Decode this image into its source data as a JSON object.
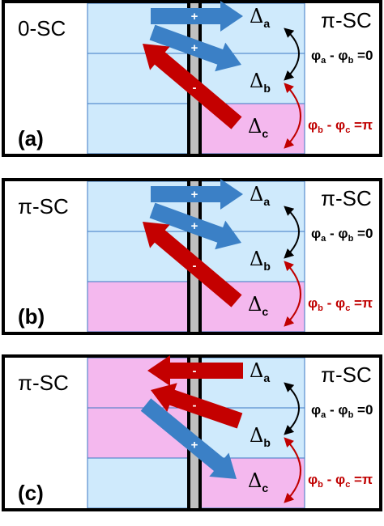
{
  "colors": {
    "band_blue": "#cfeafc",
    "band_pink": "#f4b8ee",
    "band_border": "#3b78c4",
    "barrier": "#c0c0c0",
    "arrow_blue": "#3b80c6",
    "arrow_red": "#c40000",
    "relation_black": "#000000",
    "relation_red": "#c00000",
    "frame": "#000000"
  },
  "panels": [
    {
      "id": "a",
      "panel_label": "(a)",
      "left_sc": "0-SC",
      "right_sc": "π-SC",
      "left_bands": [
        "blue",
        "blue",
        "blue"
      ],
      "right_bands": [
        "blue",
        "blue",
        "pink"
      ],
      "gaps": [
        {
          "main": "Δ",
          "sub": "a"
        },
        {
          "main": "Δ",
          "sub": "b"
        },
        {
          "main": "Δ",
          "sub": "c"
        }
      ],
      "relation_ab": {
        "text": "φ",
        "sub1": "a",
        "mid": " - φ",
        "sub2": "b",
        "rhs": " =0"
      },
      "relation_bc": {
        "text": "φ",
        "sub1": "b",
        "mid": " - φ",
        "sub2": "c",
        "rhs": " =π"
      },
      "arrows": [
        {
          "from_band": "a",
          "direction": "right",
          "sign": "+",
          "color": "blue"
        },
        {
          "from_band": "b",
          "direction": "right",
          "sign": "+",
          "color": "blue"
        },
        {
          "from_band": "c",
          "direction": "left",
          "sign": "-",
          "color": "red"
        }
      ]
    },
    {
      "id": "b",
      "panel_label": "(b)",
      "left_sc": "π-SC",
      "right_sc": "π-SC",
      "left_bands": [
        "blue",
        "blue",
        "pink"
      ],
      "right_bands": [
        "blue",
        "blue",
        "pink"
      ],
      "gaps": [
        {
          "main": "Δ",
          "sub": "a"
        },
        {
          "main": "Δ",
          "sub": "b"
        },
        {
          "main": "Δ",
          "sub": "c"
        }
      ],
      "relation_ab": {
        "text": "φ",
        "sub1": "a",
        "mid": " - φ",
        "sub2": "b",
        "rhs": " =0"
      },
      "relation_bc": {
        "text": "φ",
        "sub1": "b",
        "mid": " - φ",
        "sub2": "c",
        "rhs": " =π"
      },
      "arrows": [
        {
          "from_band": "a",
          "direction": "right",
          "sign": "+",
          "color": "blue"
        },
        {
          "from_band": "b",
          "direction": "right",
          "sign": "+",
          "color": "blue"
        },
        {
          "from_band": "c",
          "direction": "left",
          "sign": "-",
          "color": "red"
        }
      ]
    },
    {
      "id": "c",
      "panel_label": "(c)",
      "left_sc": "π-SC",
      "right_sc": "π-SC",
      "left_bands": [
        "pink",
        "pink",
        "blue"
      ],
      "right_bands": [
        "blue",
        "blue",
        "pink"
      ],
      "gaps": [
        {
          "main": "Δ",
          "sub": "a"
        },
        {
          "main": "Δ",
          "sub": "b"
        },
        {
          "main": "Δ",
          "sub": "c"
        }
      ],
      "relation_ab": {
        "text": "φ",
        "sub1": "a",
        "mid": " - φ",
        "sub2": "b",
        "rhs": " =0"
      },
      "relation_bc": {
        "text": "φ",
        "sub1": "b",
        "mid": " - φ",
        "sub2": "c",
        "rhs": " =π"
      },
      "arrows": [
        {
          "from_band": "a",
          "direction": "left",
          "sign": "-",
          "color": "red"
        },
        {
          "from_band": "b",
          "direction": "left",
          "sign": "-",
          "color": "red"
        },
        {
          "from_band": "c",
          "direction": "right",
          "sign": "+",
          "color": "blue"
        }
      ]
    }
  ]
}
